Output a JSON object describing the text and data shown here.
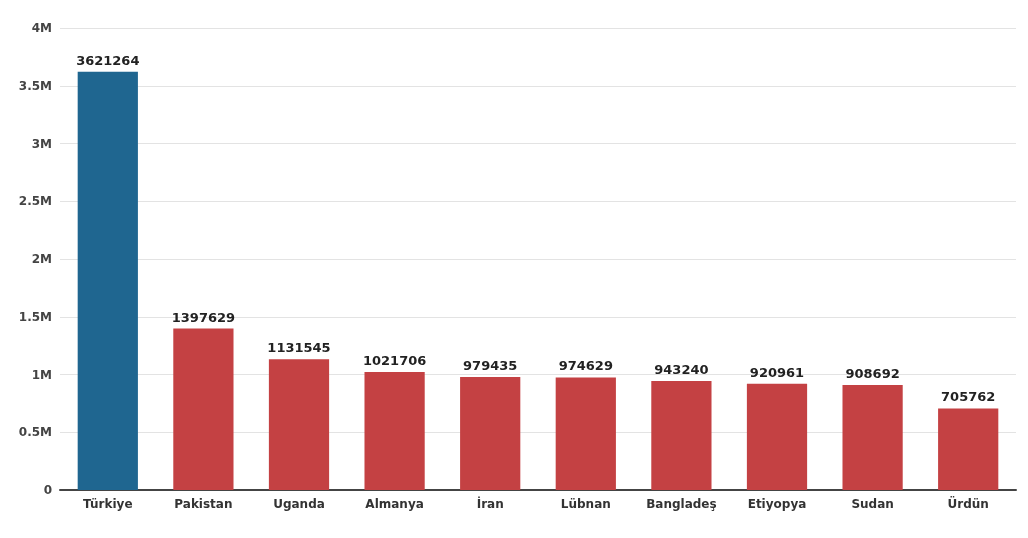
{
  "chart_data": {
    "type": "bar",
    "categories": [
      "Türkiye",
      "Pakistan",
      "Uganda",
      "Almanya",
      "İran",
      "Lübnan",
      "Bangladeş",
      "Etiyopya",
      "Sudan",
      "Ürdün"
    ],
    "values": [
      3621264,
      1397629,
      1131545,
      1021706,
      979435,
      974629,
      943240,
      920961,
      908692,
      705762
    ],
    "colors": [
      "#1f6690",
      "#c44143",
      "#c44143",
      "#c44143",
      "#c44143",
      "#c44143",
      "#c44143",
      "#c44143",
      "#c44143",
      "#c44143"
    ],
    "ylim": [
      0,
      4000000
    ],
    "yticks": [
      0,
      {
        "value": 500000,
        "label": "0.5M"
      },
      {
        "value": 1000000,
        "label": "1M"
      },
      {
        "value": 1500000,
        "label": "1.5M"
      },
      {
        "value": 2000000,
        "label": "2M"
      },
      {
        "value": 2500000,
        "label": "2.5M"
      },
      {
        "value": 3000000,
        "label": "3M"
      },
      {
        "value": 3500000,
        "label": "3.5M"
      },
      {
        "value": 4000000,
        "label": "4M"
      }
    ],
    "grid": "y",
    "data_labels": true
  }
}
